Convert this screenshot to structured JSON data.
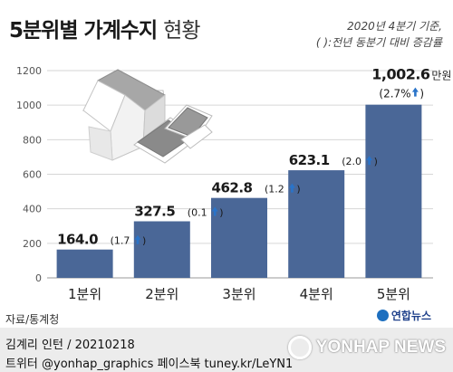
{
  "header": {
    "title_bold": "5분위별 가계수지",
    "title_light": "현황",
    "note_line1": "2020년 4분기 기준,",
    "note_line2": "( ):전년 동분기 대비 증감률"
  },
  "chart_data": {
    "type": "bar",
    "categories": [
      "1분위",
      "2분위",
      "3분위",
      "4분위",
      "5분위"
    ],
    "values": [
      164.0,
      327.5,
      462.8,
      623.1,
      1002.6
    ],
    "value_labels": [
      "164.0",
      "327.5",
      "462.8",
      "623.1",
      "1,002.6"
    ],
    "change_labels": [
      "(1.7",
      "(0.1",
      "(1.2",
      "(2.0",
      "(2.7%"
    ],
    "change_direction": [
      "up",
      "up",
      "up",
      "up",
      "up"
    ],
    "unit_label": "만원",
    "ylim": [
      0,
      1200
    ],
    "yticks": [
      0,
      200,
      400,
      600,
      800,
      1000,
      1200
    ],
    "grid": true,
    "bar_color": "#4a6797",
    "arrow_color": "#2a74c9"
  },
  "footer": {
    "source": "자료/통계청",
    "logo": "연합뉴스",
    "credit": "김계리 인턴 / 20210218",
    "handle": "트위터 @yonhap_graphics  페이스북 tuney.kr/LeYN1",
    "watermark": "YONHAP NEWS"
  }
}
